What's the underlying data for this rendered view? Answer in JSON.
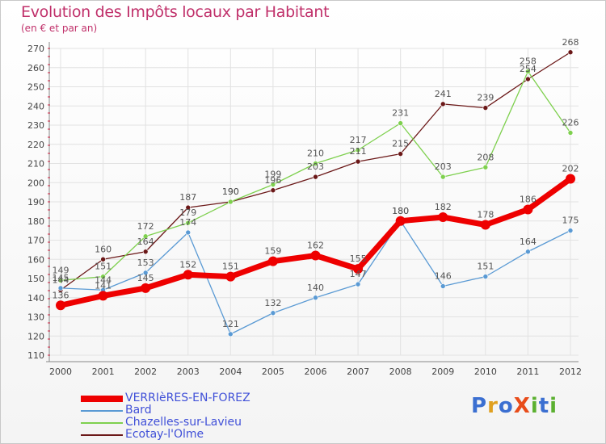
{
  "title": "Evolution des Impôts locaux par Habitant",
  "subtitle": "(en € et par an)",
  "logo": {
    "text": "ProXiti",
    "colors": [
      "#3b6fd1",
      "#e0a020",
      "#3b6fd1",
      "#e84c1a",
      "#5bb030",
      "#3b6fd1",
      "#5bb030"
    ]
  },
  "chart_data": {
    "type": "line",
    "x": [
      "2000",
      "2001",
      "2002",
      "2003",
      "2004",
      "2005",
      "2006",
      "2007",
      "2008",
      "2009",
      "2010",
      "2011",
      "2012"
    ],
    "ylim": [
      110,
      270
    ],
    "yticks": [
      110,
      120,
      130,
      140,
      150,
      160,
      170,
      180,
      190,
      200,
      210,
      220,
      230,
      240,
      250,
      260,
      270
    ],
    "grid": true,
    "legend_position": "bottom-left",
    "series": [
      {
        "name": "VERRIèRES-EN-FOREZ",
        "color": "#ee0000",
        "values": [
          136,
          141,
          145,
          152,
          151,
          159,
          162,
          155,
          180,
          182,
          178,
          186,
          202
        ]
      },
      {
        "name": "Bard",
        "color": "#5a9ad4",
        "values": [
          145,
          144,
          153,
          174,
          121,
          132,
          140,
          147,
          180,
          146,
          151,
          164,
          175
        ]
      },
      {
        "name": "Chazelles-sur-Lavieu",
        "color": "#7ed04e",
        "values": [
          149,
          151,
          172,
          179,
          190,
          199,
          210,
          217,
          231,
          203,
          208,
          258,
          226
        ]
      },
      {
        "name": "Ecotay-l'Olme",
        "color": "#6b1818",
        "values": [
          144,
          160,
          164,
          187,
          190,
          196,
          203,
          211,
          215,
          241,
          239,
          254,
          268
        ]
      }
    ]
  }
}
